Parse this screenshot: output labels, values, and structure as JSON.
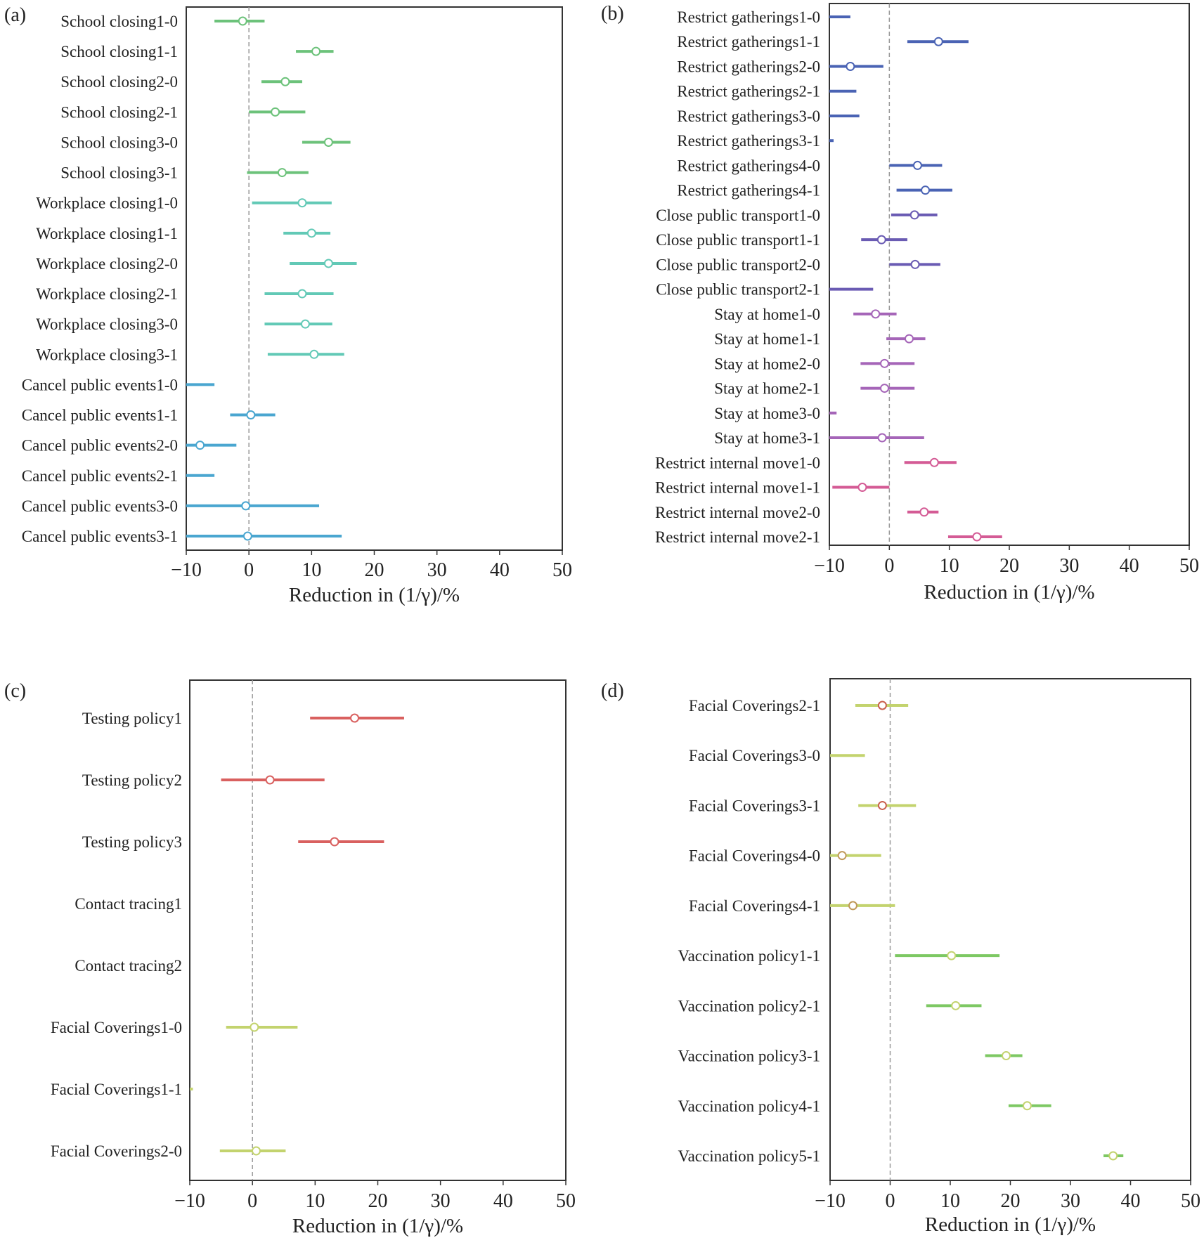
{
  "chart_data": [
    {
      "panel": "(a)",
      "type": "errorbar",
      "xlabel": "Reduction in (1/γ)/%",
      "xlim": [
        -10,
        50
      ],
      "xticks": [
        -10,
        0,
        10,
        20,
        30,
        40,
        50
      ],
      "xtick_labels": [
        "−10",
        "0",
        "10",
        "20",
        "30",
        "40",
        "50"
      ],
      "reference_line_x": 0,
      "rows": [
        {
          "label": "School closing1-0",
          "low": -5.5,
          "high": 2.5,
          "point": -1.0,
          "color": "#6cc27a"
        },
        {
          "label": "School closing1-1",
          "low": 7.5,
          "high": 13.5,
          "point": 10.7,
          "color": "#6cc27a"
        },
        {
          "label": "School closing2-0",
          "low": 2.0,
          "high": 8.5,
          "point": 5.8,
          "color": "#6cc27a"
        },
        {
          "label": "School closing2-1",
          "low": 0.0,
          "high": 9.0,
          "point": 4.2,
          "color": "#6cc27a"
        },
        {
          "label": "School closing3-0",
          "low": 8.5,
          "high": 16.2,
          "point": 12.7,
          "color": "#6cc27a"
        },
        {
          "label": "School closing3-1",
          "low": -0.3,
          "high": 9.5,
          "point": 5.3,
          "color": "#6cc27a"
        },
        {
          "label": "Workplace closing1-0",
          "low": 0.5,
          "high": 13.2,
          "point": 8.5,
          "color": "#62c9b6"
        },
        {
          "label": "Workplace closing1-1",
          "low": 5.5,
          "high": 13.0,
          "point": 10.0,
          "color": "#62c9b6"
        },
        {
          "label": "Workplace closing2-0",
          "low": 6.5,
          "high": 17.2,
          "point": 12.7,
          "color": "#62c9b6"
        },
        {
          "label": "Workplace closing2-1",
          "low": 2.5,
          "high": 13.5,
          "point": 8.5,
          "color": "#62c9b6"
        },
        {
          "label": "Workplace closing3-0",
          "low": 2.5,
          "high": 13.3,
          "point": 9.0,
          "color": "#62c9b6"
        },
        {
          "label": "Workplace closing3-1",
          "low": 3.0,
          "high": 15.2,
          "point": 10.4,
          "color": "#62c9b6"
        },
        {
          "label": "Cancel public events1-0",
          "low": -10.0,
          "high": -5.5,
          "point": null,
          "color": "#4aa6d0"
        },
        {
          "label": "Cancel public events1-1",
          "low": -3.0,
          "high": 4.2,
          "point": 0.3,
          "color": "#4aa6d0"
        },
        {
          "label": "Cancel public events2-0",
          "low": -10.0,
          "high": -2.0,
          "point": -7.8,
          "color": "#4aa6d0"
        },
        {
          "label": "Cancel public events2-1",
          "low": -10.0,
          "high": -5.5,
          "point": null,
          "color": "#4aa6d0"
        },
        {
          "label": "Cancel public events3-0",
          "low": -10.0,
          "high": 11.2,
          "point": -0.5,
          "color": "#4aa6d0"
        },
        {
          "label": "Cancel public events3-1",
          "low": -10.0,
          "high": 14.8,
          "point": -0.2,
          "color": "#4aa6d0"
        }
      ]
    },
    {
      "panel": "(b)",
      "type": "errorbar",
      "xlabel": "Reduction in (1/γ)/%",
      "xlim": [
        -10,
        50
      ],
      "xticks": [
        -10,
        0,
        10,
        20,
        30,
        40,
        50
      ],
      "xtick_labels": [
        "−10",
        "0",
        "10",
        "20",
        "30",
        "40",
        "50"
      ],
      "reference_line_x": 0,
      "rows": [
        {
          "label": "Restrict gatherings1-0",
          "low": -10.0,
          "high": -6.5,
          "point": null,
          "color": "#4a63b4"
        },
        {
          "label": "Restrict gatherings1-1",
          "low": 3.0,
          "high": 13.2,
          "point": 8.2,
          "color": "#4a63b4"
        },
        {
          "label": "Restrict gatherings2-0",
          "low": -10.0,
          "high": -1.0,
          "point": -6.5,
          "color": "#4a63b4"
        },
        {
          "label": "Restrict gatherings2-1",
          "low": -10.0,
          "high": -5.5,
          "point": null,
          "color": "#4a63b4"
        },
        {
          "label": "Restrict gatherings3-0",
          "low": -10.0,
          "high": -5.0,
          "point": null,
          "color": "#4a63b4"
        },
        {
          "label": "Restrict gatherings3-1",
          "low": -10.0,
          "high": -9.3,
          "point": null,
          "color": "#4a63b4"
        },
        {
          "label": "Restrict gatherings4-0",
          "low": 0.0,
          "high": 8.8,
          "point": 4.7,
          "color": "#4a63b4"
        },
        {
          "label": "Restrict gatherings4-1",
          "low": 1.2,
          "high": 10.5,
          "point": 6.0,
          "color": "#4a63b4"
        },
        {
          "label": "Close public transport1-0",
          "low": 0.3,
          "high": 8.0,
          "point": 4.2,
          "color": "#6a5bb3"
        },
        {
          "label": "Close public transport1-1",
          "low": -4.7,
          "high": 3.0,
          "point": -1.3,
          "color": "#6a5bb3"
        },
        {
          "label": "Close public transport2-0",
          "low": 0.0,
          "high": 8.5,
          "point": 4.3,
          "color": "#6a5bb3"
        },
        {
          "label": "Close public transport2-1",
          "low": -10.0,
          "high": -2.7,
          "point": null,
          "color": "#6a5bb3"
        },
        {
          "label": "Stay at home1-0",
          "low": -6.0,
          "high": 1.2,
          "point": -2.3,
          "color": "#a565b8"
        },
        {
          "label": "Stay at home1-1",
          "low": -0.5,
          "high": 6.0,
          "point": 3.3,
          "color": "#a565b8"
        },
        {
          "label": "Stay at home2-0",
          "low": -4.8,
          "high": 4.2,
          "point": -0.8,
          "color": "#a565b8"
        },
        {
          "label": "Stay at home2-1",
          "low": -4.8,
          "high": 4.2,
          "point": -0.8,
          "color": "#a565b8"
        },
        {
          "label": "Stay at home3-0",
          "low": -10.0,
          "high": -8.8,
          "point": null,
          "color": "#a565b8"
        },
        {
          "label": "Stay at home3-1",
          "low": -10.0,
          "high": 5.8,
          "point": -1.2,
          "color": "#a565b8"
        },
        {
          "label": "Restrict internal move1-0",
          "low": 2.5,
          "high": 11.2,
          "point": 7.5,
          "color": "#d45b95"
        },
        {
          "label": "Restrict internal move1-1",
          "low": -9.5,
          "high": 0.0,
          "point": -4.5,
          "color": "#d45b95"
        },
        {
          "label": "Restrict internal move2-0",
          "low": 3.0,
          "high": 8.2,
          "point": 5.8,
          "color": "#d45b95"
        },
        {
          "label": "Restrict internal move2-1",
          "low": 9.8,
          "high": 18.8,
          "point": 14.6,
          "color": "#d45b95"
        }
      ]
    },
    {
      "panel": "(c)",
      "type": "errorbar",
      "xlabel": "Reduction in (1/γ)/%",
      "xlim": [
        -10,
        50
      ],
      "xticks": [
        -10,
        0,
        10,
        20,
        30,
        40,
        50
      ],
      "xtick_labels": [
        "−10",
        "0",
        "10",
        "20",
        "30",
        "40",
        "50"
      ],
      "reference_line_x": 0,
      "rows": [
        {
          "label": "Testing policy1",
          "low": 9.2,
          "high": 24.2,
          "point": 16.3,
          "color": "#d9605f"
        },
        {
          "label": "Testing policy2",
          "low": -5.0,
          "high": 11.5,
          "point": 2.8,
          "color": "#d9605f"
        },
        {
          "label": "Testing policy3",
          "low": 7.3,
          "high": 21.0,
          "point": 13.1,
          "color": "#d9605f"
        },
        {
          "label": "Contact tracing1",
          "low": null,
          "high": null,
          "point": null,
          "color": "#d9605f"
        },
        {
          "label": "Contact tracing2",
          "low": null,
          "high": null,
          "point": null,
          "color": "#d9605f"
        },
        {
          "label": "Facial Coverings1-0",
          "low": -4.2,
          "high": 7.2,
          "point": 0.3,
          "color": "#c3d36e"
        },
        {
          "label": "Facial Coverings1-1",
          "low": -10.0,
          "high": -9.5,
          "point": null,
          "color": "#c3d36e"
        },
        {
          "label": "Facial Coverings2-0",
          "low": -5.2,
          "high": 5.3,
          "point": 0.6,
          "color": "#c3d36e"
        }
      ]
    },
    {
      "panel": "(d)",
      "type": "errorbar",
      "xlabel": "Reduction in (1/γ)/%",
      "xlim": [
        -10,
        50
      ],
      "xticks": [
        -10,
        0,
        10,
        20,
        30,
        40,
        50
      ],
      "xtick_labels": [
        "−10",
        "0",
        "10",
        "20",
        "30",
        "40",
        "50"
      ],
      "reference_line_x": 0,
      "rows": [
        {
          "label": "Facial Coverings2-1",
          "low": -5.8,
          "high": 3.0,
          "point": -1.3,
          "color": "#c3d36e",
          "point_color": "#c9604e"
        },
        {
          "label": "Facial Coverings3-0",
          "low": -10.0,
          "high": -4.2,
          "point": null,
          "color": "#c3d36e"
        },
        {
          "label": "Facial Coverings3-1",
          "low": -5.3,
          "high": 4.3,
          "point": -1.3,
          "color": "#c3d36e",
          "point_color": "#c9604e"
        },
        {
          "label": "Facial Coverings4-0",
          "low": -10.0,
          "high": -1.5,
          "point": -8.0,
          "color": "#c3d36e",
          "point_color": "#c09a5a"
        },
        {
          "label": "Facial Coverings4-1",
          "low": -10.0,
          "high": 0.8,
          "point": -6.2,
          "color": "#c3d36e",
          "point_color": "#c09a5a"
        },
        {
          "label": "Vaccination policy1-1",
          "low": 0.8,
          "high": 18.2,
          "point": 10.2,
          "color": "#7dc863",
          "point_color": "#c3d36e"
        },
        {
          "label": "Vaccination policy2-1",
          "low": 6.0,
          "high": 15.2,
          "point": 10.9,
          "color": "#7dc863",
          "point_color": "#c3d36e"
        },
        {
          "label": "Vaccination policy3-1",
          "low": 15.8,
          "high": 22.0,
          "point": 19.3,
          "color": "#7dc863",
          "point_color": "#c3d36e"
        },
        {
          "label": "Vaccination policy4-1",
          "low": 19.7,
          "high": 26.8,
          "point": 22.8,
          "color": "#7dc863",
          "point_color": "#c3d36e"
        },
        {
          "label": "Vaccination policy5-1",
          "low": 35.5,
          "high": 38.8,
          "point": 37.1,
          "color": "#7dc863",
          "point_color": "#c3d36e"
        }
      ]
    }
  ]
}
